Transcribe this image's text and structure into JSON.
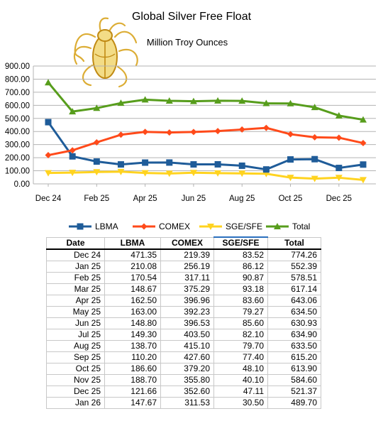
{
  "chart_data": {
    "type": "line",
    "title": "Global Silver Free Float",
    "subtitle": "Million Troy Ounces",
    "categories": [
      "Dec 24",
      "Jan 25",
      "Feb 25",
      "Mar 25",
      "Apr 25",
      "May 25",
      "Jun 25",
      "Jul 25",
      "Aug 25",
      "Sep 25",
      "Oct 25",
      "Nov 25",
      "Dec 25",
      "Jan 26"
    ],
    "x_tick_labels": [
      "Dec 24",
      "Feb 25",
      "Apr 25",
      "Jun 25",
      "Aug 25",
      "Oct 25",
      "Dec 25"
    ],
    "y_tick_labels": [
      "0.00",
      "100.00",
      "200.00",
      "300.00",
      "400.00",
      "500.00",
      "600.00",
      "700.00",
      "800.00",
      "900.00"
    ],
    "ylim": [
      0,
      900
    ],
    "grid": true,
    "legend_position": "bottom",
    "series": [
      {
        "name": "LBMA",
        "color": "#1f5c99",
        "marker": "square",
        "values": [
          471.35,
          210.08,
          170.54,
          148.67,
          162.5,
          163.0,
          148.8,
          149.3,
          138.7,
          110.2,
          186.6,
          188.7,
          121.66,
          147.67
        ]
      },
      {
        "name": "COMEX",
        "color": "#ff4a1a",
        "marker": "diamond",
        "values": [
          219.39,
          256.19,
          317.11,
          375.29,
          396.96,
          392.23,
          396.53,
          403.5,
          415.1,
          427.6,
          379.2,
          355.8,
          352.6,
          311.53
        ]
      },
      {
        "name": "SGE/SFE",
        "color": "#ffd320",
        "marker": "triangle-down",
        "values": [
          83.52,
          86.12,
          90.87,
          93.18,
          83.6,
          79.27,
          85.6,
          82.1,
          79.7,
          77.4,
          48.1,
          40.1,
          47.11,
          30.5
        ]
      },
      {
        "name": "Total",
        "color": "#579d1c",
        "marker": "triangle-up",
        "values": [
          774.26,
          552.39,
          578.51,
          617.14,
          643.06,
          634.5,
          630.93,
          634.9,
          633.5,
          615.2,
          613.9,
          584.6,
          521.37,
          489.7
        ]
      }
    ]
  },
  "table": {
    "headers": [
      "Date",
      "LBMA",
      "COMEX",
      "SGE/SFE",
      "Total"
    ],
    "rows": [
      [
        "Dec 24",
        "471.35",
        "219.39",
        "83.52",
        "774.26"
      ],
      [
        "Jan 25",
        "210.08",
        "256.19",
        "86.12",
        "552.39"
      ],
      [
        "Feb 25",
        "170.54",
        "317.11",
        "90.87",
        "578.51"
      ],
      [
        "Mar 25",
        "148.67",
        "375.29",
        "93.18",
        "617.14"
      ],
      [
        "Apr 25",
        "162.50",
        "396.96",
        "83.60",
        "643.06"
      ],
      [
        "May 25",
        "163.00",
        "392.23",
        "79.27",
        "634.50"
      ],
      [
        "Jun 25",
        "148.80",
        "396.53",
        "85.60",
        "630.93"
      ],
      [
        "Jul 25",
        "149.30",
        "403.50",
        "82.10",
        "634.90"
      ],
      [
        "Aug 25",
        "138.70",
        "415.10",
        "79.70",
        "633.50"
      ],
      [
        "Sep 25",
        "110.20",
        "427.60",
        "77.40",
        "615.20"
      ],
      [
        "Oct 25",
        "186.60",
        "379.20",
        "48.10",
        "613.90"
      ],
      [
        "Nov 25",
        "188.70",
        "355.80",
        "40.10",
        "584.60"
      ],
      [
        "Dec 25",
        "121.66",
        "352.60",
        "47.11",
        "521.37"
      ],
      [
        "Jan 26",
        "147.67",
        "311.53",
        "30.50",
        "489.70"
      ]
    ]
  },
  "logo": {
    "name": "beetle-logo",
    "color": "#d9a520"
  }
}
